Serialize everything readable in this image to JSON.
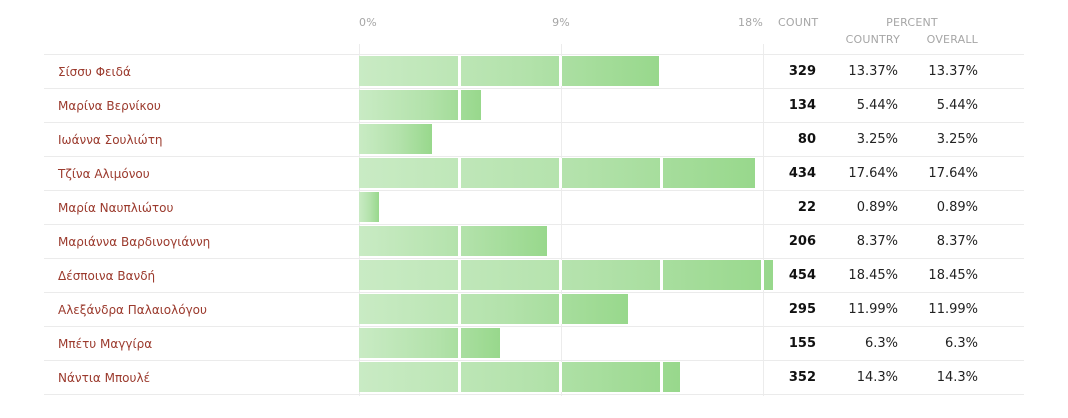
{
  "axis": {
    "ticks": [
      "0%",
      "9%",
      "18%"
    ],
    "max": 18
  },
  "headers": {
    "count": "COUNT",
    "percent": "PERCENT",
    "country": "COUNTRY",
    "overall": "OVERALL"
  },
  "chart_data": {
    "type": "bar",
    "orientation": "horizontal",
    "xlim": [
      0,
      18
    ],
    "categories": [
      "Σίσσυ Φειδά",
      "Μαρίνα Βερνίκου",
      "Ιωάννα Σουλιώτη",
      "Τζίνα Αλιμόνου",
      "Μαρία Ναυπλιώτου",
      "Μαριάννα Βαρδινογιάννη",
      "Δέσποινα Βανδή",
      "Αλεξάνδρα Παλαιολόγου",
      "Μπέτυ Μαγγίρα",
      "Νάντια Μπουλέ"
    ],
    "counts": [
      329,
      134,
      80,
      434,
      22,
      206,
      454,
      295,
      155,
      352
    ],
    "country_pct": [
      "13.37%",
      "5.44%",
      "3.25%",
      "17.64%",
      "0.89%",
      "8.37%",
      "18.45%",
      "11.99%",
      "6.3%",
      "14.3%"
    ],
    "overall_pct": [
      "13.37%",
      "5.44%",
      "3.25%",
      "17.64%",
      "0.89%",
      "8.37%",
      "18.45%",
      "11.99%",
      "6.3%",
      "14.3%"
    ],
    "values": [
      13.37,
      5.44,
      3.25,
      17.64,
      0.89,
      8.37,
      18.45,
      11.99,
      6.3,
      14.3
    ]
  }
}
